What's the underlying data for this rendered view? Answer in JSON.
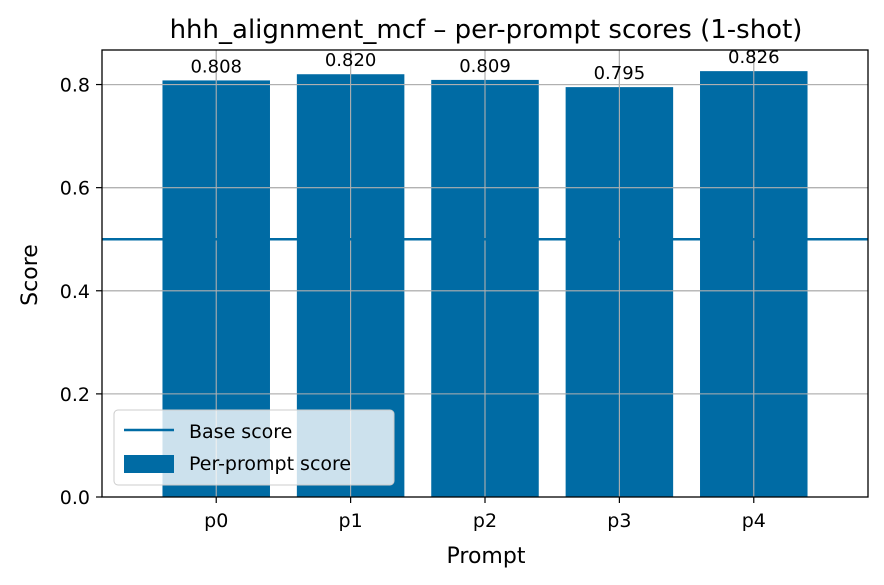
{
  "chart_data": {
    "type": "bar",
    "title": "hhh_alignment_mcf – per-prompt scores (1-shot)",
    "xlabel": "Prompt",
    "ylabel": "Score",
    "categories": [
      "p0",
      "p1",
      "p2",
      "p3",
      "p4"
    ],
    "series": [
      {
        "name": "Per-prompt score",
        "values": [
          0.808,
          0.82,
          0.809,
          0.795,
          0.826
        ]
      }
    ],
    "data_labels": [
      "0.808",
      "0.820",
      "0.809",
      "0.795",
      "0.826"
    ],
    "base_score": {
      "name": "Base score",
      "value": 0.5
    },
    "ylim": [
      0,
      0.867
    ],
    "yticks": [
      0.0,
      0.2,
      0.4,
      0.6,
      0.8
    ],
    "ytick_labels": [
      "0.0",
      "0.2",
      "0.4",
      "0.6",
      "0.8"
    ],
    "grid": true,
    "legend_position": "bottom-left",
    "bar_color": "#006ba4",
    "line_color": "#006ba4"
  }
}
